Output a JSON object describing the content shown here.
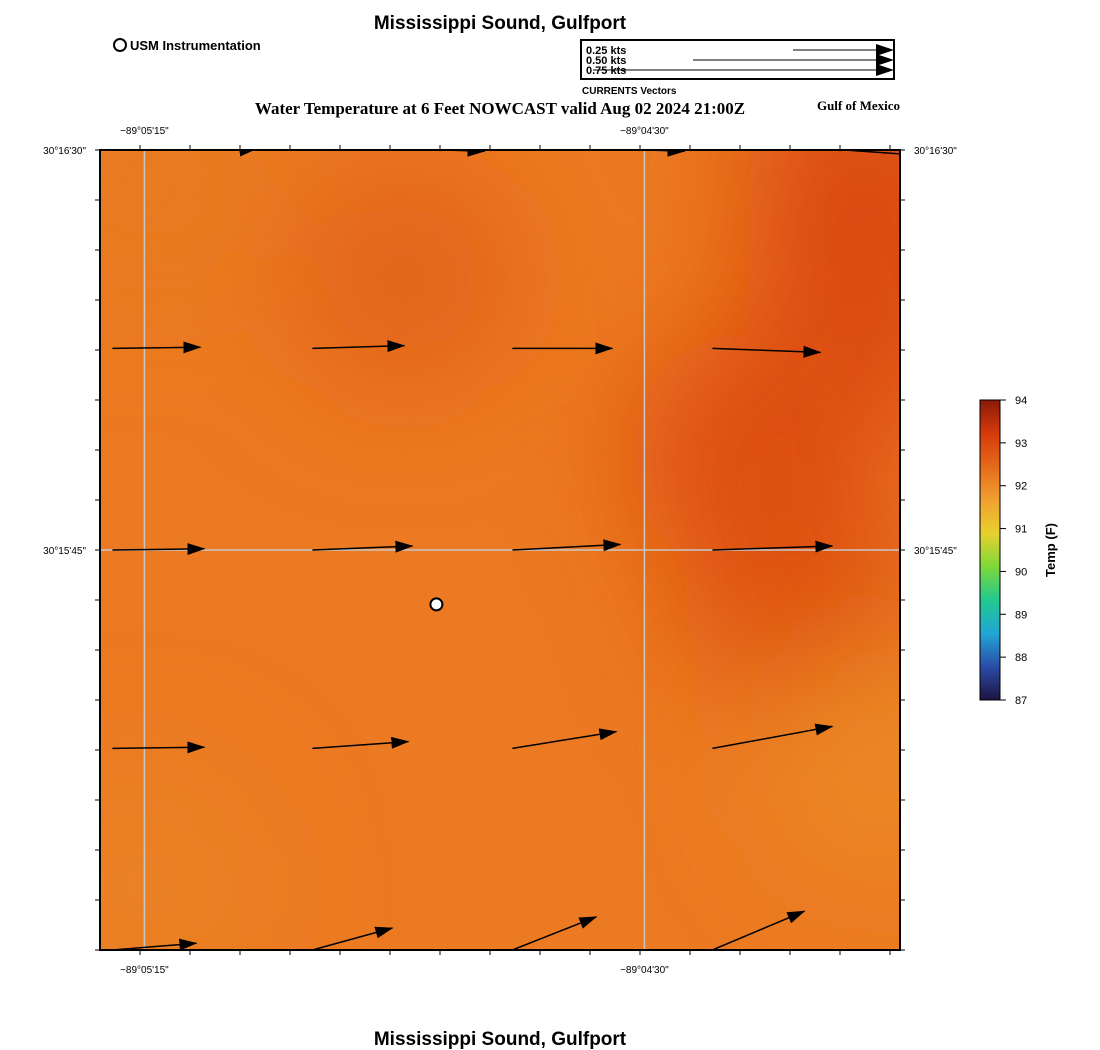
{
  "title_top": "Mississippi Sound, Gulfport",
  "title_bottom": "Mississippi Sound, Gulfport",
  "subtitle": "Water Temperature at 6 Feet NOWCAST valid Aug 02 2024 21:00Z",
  "region_label": "Gulf of Mexico",
  "station_legend_label": "USM Instrumentation",
  "vector_legend": {
    "title": "CURRENTS Vectors",
    "entries": [
      {
        "label": "0.25 kts",
        "kts": 0.25
      },
      {
        "label": "0.50 kts",
        "kts": 0.5
      },
      {
        "label": "0.75 kts",
        "kts": 0.75
      }
    ]
  },
  "axes": {
    "lon_ticks": [
      {
        "label": "−89°05'15\"",
        "lon": -89.0875
      },
      {
        "label": "−89°04'30\"",
        "lon": -89.075
      }
    ],
    "lat_ticks": [
      {
        "label": "30°16'30\"",
        "lat": 30.275
      },
      {
        "label": "30°15'45\"",
        "lat": 30.2625
      }
    ],
    "lon_range": [
      -89.08861,
      -89.06861
    ],
    "lat_range": [
      30.25,
      30.275
    ]
  },
  "colorbar": {
    "label": "Temp (F)",
    "min": 87,
    "max": 94,
    "ticks": [
      "94",
      "93",
      "92",
      "91",
      "90",
      "89",
      "88",
      "87"
    ],
    "colors": [
      "#1c1440",
      "#2b4ca8",
      "#21a6d6",
      "#22c98f",
      "#7ed83b",
      "#e8d02e",
      "#f0a030",
      "#e56a1c",
      "#d63a0a",
      "#8a1a08"
    ]
  },
  "station": {
    "lon": -89.0802,
    "lat": 30.2608
  },
  "temperature_blobs": [
    {
      "lon": -89.0724,
      "lat": 30.2655,
      "temp": 93.0
    },
    {
      "lon": -89.071,
      "lat": 30.2611,
      "temp": 92.9
    },
    {
      "lon": -89.0695,
      "lat": 30.2695,
      "temp": 93.0
    },
    {
      "lon": -89.0695,
      "lat": 30.274,
      "temp": 93.1
    },
    {
      "lon": -89.081,
      "lat": 30.271,
      "temp": 92.6
    },
    {
      "lon": -89.0876,
      "lat": 30.252,
      "temp": 92.1
    },
    {
      "lon": -89.0874,
      "lat": 30.274,
      "temp": 92.2
    },
    {
      "lon": -89.069,
      "lat": 30.256,
      "temp": 92.0
    }
  ],
  "current_vectors": [
    {
      "lon": -89.085,
      "lat": 30.275,
      "u_kts": 0.03,
      "v_kts": 0.003
    },
    {
      "lon": -89.08,
      "lat": 30.275,
      "u_kts": 0.1,
      "v_kts": -0.003
    },
    {
      "lon": -89.075,
      "lat": 30.275,
      "u_kts": 0.1,
      "v_kts": -0.003
    },
    {
      "lon": -89.07,
      "lat": 30.275,
      "u_kts": 0.2,
      "v_kts": -0.014
    },
    {
      "lon": -89.0883,
      "lat": 30.2688,
      "u_kts": 0.22,
      "v_kts": 0.003
    },
    {
      "lon": -89.0833,
      "lat": 30.2688,
      "u_kts": 0.23,
      "v_kts": 0.007
    },
    {
      "lon": -89.0783,
      "lat": 30.2688,
      "u_kts": 0.25,
      "v_kts": 0.0
    },
    {
      "lon": -89.0733,
      "lat": 30.2688,
      "u_kts": 0.27,
      "v_kts": -0.01
    },
    {
      "lon": -89.0883,
      "lat": 30.2625,
      "u_kts": 0.23,
      "v_kts": 0.003
    },
    {
      "lon": -89.0833,
      "lat": 30.2625,
      "u_kts": 0.25,
      "v_kts": 0.01
    },
    {
      "lon": -89.0783,
      "lat": 30.2625,
      "u_kts": 0.27,
      "v_kts": 0.014
    },
    {
      "lon": -89.0733,
      "lat": 30.2625,
      "u_kts": 0.3,
      "v_kts": 0.01
    },
    {
      "lon": -89.0883,
      "lat": 30.2563,
      "u_kts": 0.23,
      "v_kts": 0.003
    },
    {
      "lon": -89.0833,
      "lat": 30.2563,
      "u_kts": 0.24,
      "v_kts": 0.017
    },
    {
      "lon": -89.0783,
      "lat": 30.2563,
      "u_kts": 0.26,
      "v_kts": 0.042
    },
    {
      "lon": -89.0733,
      "lat": 30.2563,
      "u_kts": 0.3,
      "v_kts": 0.055
    },
    {
      "lon": -89.0883,
      "lat": 30.25,
      "u_kts": 0.21,
      "v_kts": 0.017
    },
    {
      "lon": -89.0833,
      "lat": 30.25,
      "u_kts": 0.2,
      "v_kts": 0.055
    },
    {
      "lon": -89.0783,
      "lat": 30.25,
      "u_kts": 0.21,
      "v_kts": 0.083
    },
    {
      "lon": -89.0733,
      "lat": 30.25,
      "u_kts": 0.23,
      "v_kts": 0.097
    }
  ]
}
